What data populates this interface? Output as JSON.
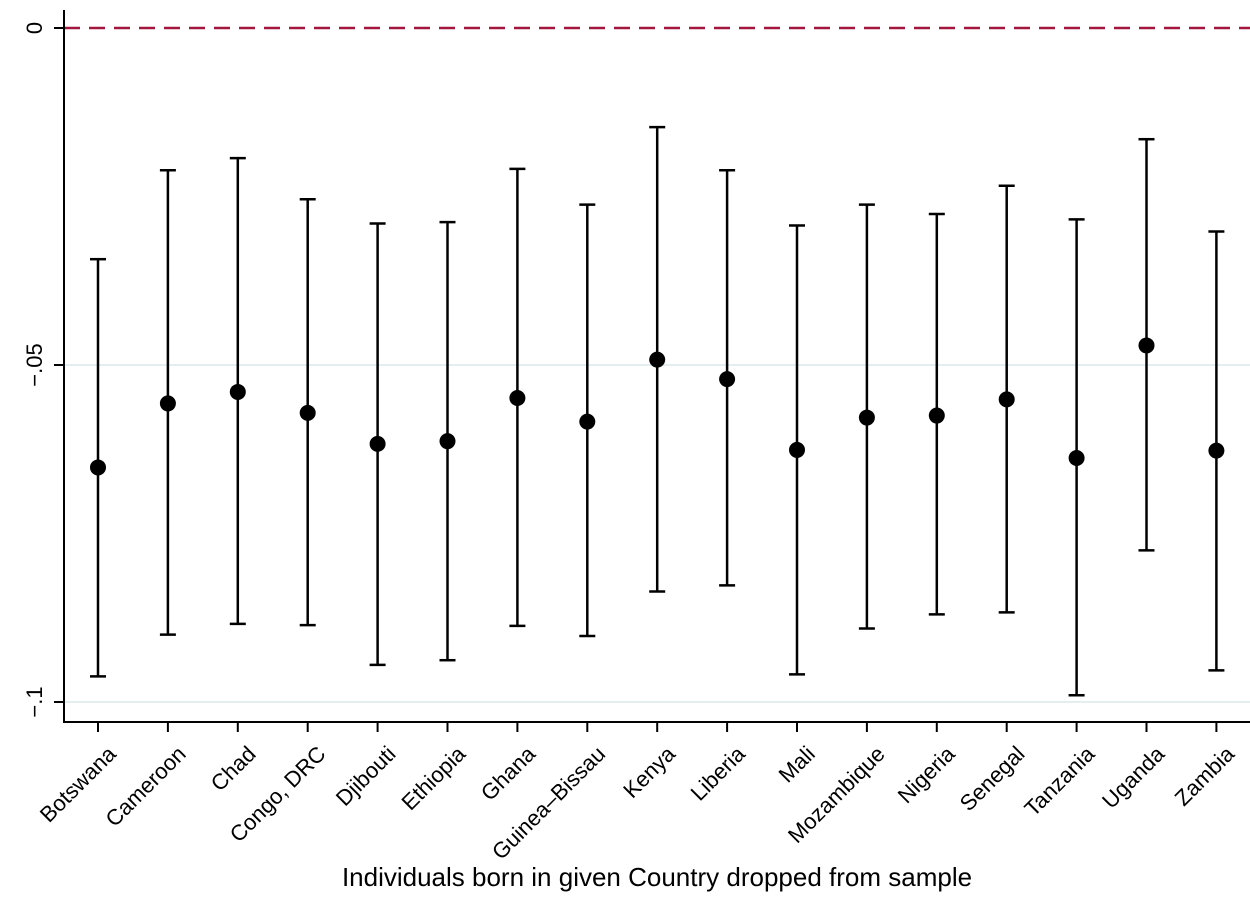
{
  "chart_data": {
    "type": "scatter",
    "subtype": "point-estimates-with-confidence-intervals",
    "title": "",
    "xlabel": "Individuals born in given Country dropped from sample",
    "ylabel": "",
    "categories": [
      "Botswana",
      "Cameroon",
      "Chad",
      "Congo, DRC",
      "Djibouti",
      "Ethiopia",
      "Ghana",
      "Guinea–Bissau",
      "Kenya",
      "Liberia",
      "Mali",
      "Mozambique",
      "Nigeria",
      "Senegal",
      "Tanzania",
      "Uganda",
      "Zambia"
    ],
    "estimate": [
      -0.0652,
      -0.0557,
      -0.054,
      -0.0571,
      -0.0617,
      -0.0613,
      -0.0549,
      -0.0584,
      -0.0492,
      -0.0521,
      -0.0626,
      -0.0578,
      -0.0575,
      -0.0551,
      -0.0638,
      -0.0471,
      -0.0627
    ],
    "ci_upper": [
      -0.0343,
      -0.0211,
      -0.0193,
      -0.0254,
      -0.029,
      -0.0288,
      -0.0209,
      -0.0262,
      -0.0147,
      -0.0211,
      -0.0293,
      -0.0262,
      -0.0276,
      -0.0234,
      -0.0284,
      -0.0165,
      -0.0302
    ],
    "ci_lower": [
      -0.0962,
      -0.09,
      -0.0884,
      -0.0886,
      -0.0945,
      -0.0938,
      -0.0887,
      -0.0902,
      -0.0836,
      -0.0827,
      -0.0959,
      -0.0891,
      -0.087,
      -0.0867,
      -0.099,
      -0.0775,
      -0.0953
    ],
    "ylim": [
      -0.103,
      0.002
    ],
    "yticks": [
      0,
      -0.05,
      -0.1
    ],
    "ytick_labels": [
      "0",
      "−.05",
      "−.1"
    ],
    "reference_line": {
      "y": 0,
      "style": "dashed"
    },
    "grid": "horizontal",
    "legend": "none",
    "colors": {
      "marker": "#000000",
      "reference_line": "#a3163d",
      "grid": "#e4eef0",
      "axis": "#000000"
    }
  }
}
